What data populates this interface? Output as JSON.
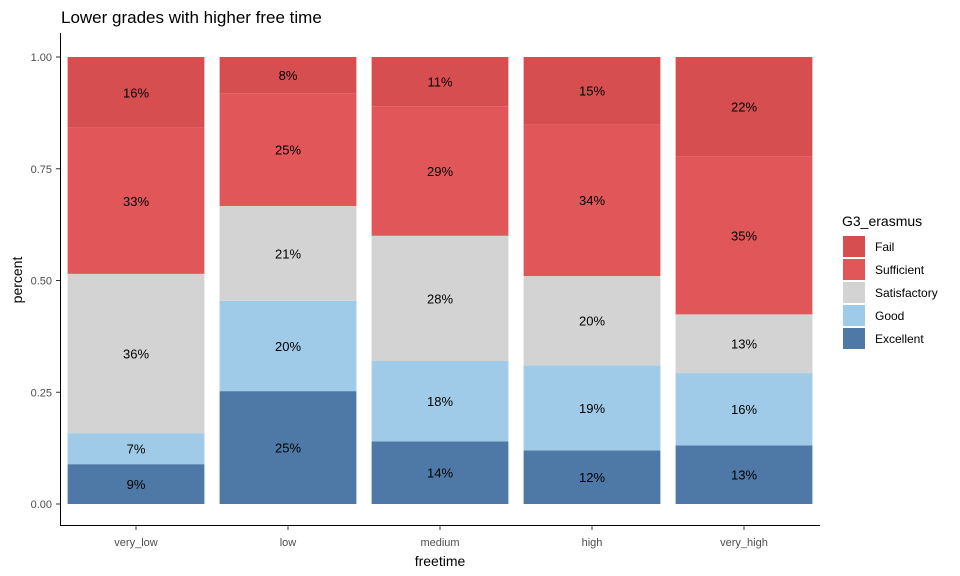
{
  "chart_data": {
    "type": "bar",
    "stacked": true,
    "title": "Lower grades with higher free time",
    "xlabel": "freetime",
    "ylabel": "percent",
    "ylim": [
      0,
      1
    ],
    "yticks": [
      "0.00",
      "0.25",
      "0.50",
      "0.75",
      "1.00"
    ],
    "categories": [
      "very_low",
      "low",
      "medium",
      "high",
      "very_high"
    ],
    "legend": {
      "title": "G3_erasmus",
      "position": "right"
    },
    "grid": false,
    "series": [
      {
        "name": "Excellent",
        "color": "#4e79a7",
        "values": [
          0.09,
          0.25,
          0.14,
          0.12,
          0.13
        ],
        "labels": [
          "9%",
          "25%",
          "14%",
          "12%",
          "13%"
        ]
      },
      {
        "name": "Good",
        "color": "#a0cbe8",
        "values": [
          0.07,
          0.2,
          0.18,
          0.19,
          0.16
        ],
        "labels": [
          "7%",
          "20%",
          "18%",
          "19%",
          "16%"
        ]
      },
      {
        "name": "Satisfactory",
        "color": "#d3d3d3",
        "values": [
          0.36,
          0.21,
          0.28,
          0.2,
          0.13
        ],
        "labels": [
          "36%",
          "21%",
          "28%",
          "20%",
          "13%"
        ]
      },
      {
        "name": "Sufficient",
        "color": "#e15759",
        "values": [
          0.33,
          0.25,
          0.29,
          0.34,
          0.35
        ],
        "labels": [
          "33%",
          "25%",
          "29%",
          "34%",
          "35%"
        ]
      },
      {
        "name": "Fail",
        "color": "#d64e4f",
        "values": [
          0.16,
          0.08,
          0.11,
          0.15,
          0.22
        ],
        "labels": [
          "16%",
          "8%",
          "11%",
          "15%",
          "22%"
        ]
      }
    ]
  }
}
